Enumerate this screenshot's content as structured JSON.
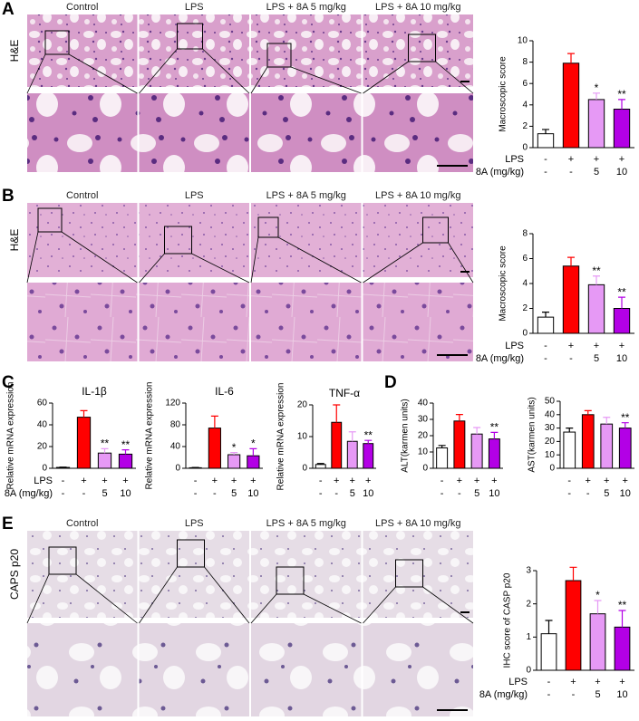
{
  "panel_letters": [
    "A",
    "B",
    "C",
    "D",
    "E"
  ],
  "image_panels": [
    {
      "stain": "H&E",
      "columns": [
        "Control",
        "LPS",
        "LPS + 8A 5 mg/kg",
        "LPS + 8A 10 mg/kg"
      ]
    },
    {
      "stain": "H&E",
      "columns": [
        "Control",
        "LPS",
        "LPS + 8A 5 mg/kg",
        "LPS + 8A 10 mg/kg"
      ]
    },
    {
      "stain": "CAPS p20",
      "columns": [
        "Control",
        "LPS",
        "LPS + 8A 5 mg/kg",
        "LPS + 8A 10 mg/kg"
      ]
    }
  ],
  "chart_data": [
    {
      "type": "bar",
      "ylabel": "Macroscopic score",
      "values": [
        1.3,
        7.9,
        4.5,
        3.6
      ],
      "errors": [
        0.4,
        0.9,
        0.6,
        0.9
      ],
      "annotations": [
        null,
        null,
        "*",
        "**"
      ],
      "colors": [
        "#ffffff",
        "#ff0000",
        "#e699f5",
        "#b300e6"
      ],
      "ylim": [
        0,
        10
      ],
      "yticks": [
        0,
        2,
        4,
        6,
        8,
        10
      ],
      "rows": [
        {
          "label": "LPS",
          "values": [
            "-",
            "+",
            "+",
            "+"
          ]
        },
        {
          "label": "8A (mg/kg)",
          "values": [
            "-",
            "-",
            "5",
            "10"
          ]
        }
      ]
    },
    {
      "type": "bar",
      "ylabel": "Macroscopic score",
      "values": [
        1.3,
        5.4,
        3.9,
        2.0
      ],
      "errors": [
        0.4,
        0.7,
        0.7,
        0.9
      ],
      "annotations": [
        null,
        null,
        "**",
        "**"
      ],
      "colors": [
        "#ffffff",
        "#ff0000",
        "#e699f5",
        "#b300e6"
      ],
      "ylim": [
        0,
        8
      ],
      "yticks": [
        0,
        2,
        4,
        6,
        8
      ],
      "rows": [
        {
          "label": "LPS",
          "values": [
            "-",
            "+",
            "+",
            "+"
          ]
        },
        {
          "label": "8A (mg/kg)",
          "values": [
            "-",
            "-",
            "5",
            "10"
          ]
        }
      ]
    },
    {
      "type": "bar",
      "title": "IL-1β",
      "ylabel": "Relative mRNA expression",
      "values": [
        0.8,
        47,
        14,
        13
      ],
      "errors": [
        0.3,
        6,
        4,
        4
      ],
      "annotations": [
        null,
        null,
        "**",
        "**"
      ],
      "colors": [
        "#ffffff",
        "#ff0000",
        "#e699f5",
        "#b300e6"
      ],
      "ylim": [
        0,
        60
      ],
      "yticks": [
        0,
        20,
        40,
        60
      ],
      "rows": [
        {
          "label": "LPS",
          "values": [
            "-",
            "+",
            "+",
            "+"
          ]
        },
        {
          "label": "8A (mg/kg)",
          "values": [
            "-",
            "-",
            "5",
            "10"
          ]
        }
      ]
    },
    {
      "type": "bar",
      "title": "IL-6",
      "ylabel": "Relative mRNA expression",
      "values": [
        1,
        74,
        25,
        23
      ],
      "errors": [
        0.5,
        22,
        4,
        13
      ],
      "annotations": [
        null,
        null,
        "*",
        "*"
      ],
      "colors": [
        "#ffffff",
        "#ff0000",
        "#e699f5",
        "#b300e6"
      ],
      "ylim": [
        0,
        120
      ],
      "yticks": [
        0,
        40,
        80,
        120
      ],
      "rows": [
        {
          "values": [
            "-",
            "+",
            "+",
            "+"
          ]
        },
        {
          "values": [
            "-",
            "-",
            "5",
            "10"
          ]
        }
      ]
    },
    {
      "type": "bar",
      "title": "TNF-α",
      "ylabel": "Relative mRNA expression",
      "values": [
        1.2,
        14.5,
        8.5,
        7.8
      ],
      "errors": [
        0.3,
        5.5,
        3,
        1
      ],
      "annotations": [
        null,
        null,
        null,
        "**"
      ],
      "colors": [
        "#ffffff",
        "#ff0000",
        "#e699f5",
        "#b300e6"
      ],
      "ylim": [
        0,
        20
      ],
      "yticks": [
        0,
        10,
        20
      ],
      "rows": [
        {
          "values": [
            "-",
            "+",
            "+",
            "+"
          ]
        },
        {
          "values": [
            "-",
            "-",
            "5",
            "10"
          ]
        }
      ]
    },
    {
      "type": "bar",
      "ylabel": "ALT(karmen units)",
      "values": [
        12.5,
        29,
        21,
        18
      ],
      "errors": [
        1.5,
        4,
        4,
        4
      ],
      "annotations": [
        null,
        null,
        null,
        "**"
      ],
      "colors": [
        "#ffffff",
        "#ff0000",
        "#e699f5",
        "#b300e6"
      ],
      "ylim": [
        0,
        40
      ],
      "yticks": [
        0,
        10,
        20,
        30,
        40
      ],
      "rows": [
        {
          "values": [
            "-",
            "+",
            "+",
            "+"
          ]
        },
        {
          "values": [
            "-",
            "-",
            "5",
            "10"
          ]
        }
      ]
    },
    {
      "type": "bar",
      "ylabel": "AST(karmen units)",
      "values": [
        27,
        40,
        33,
        30
      ],
      "errors": [
        3,
        3,
        5,
        4
      ],
      "annotations": [
        null,
        null,
        null,
        "**"
      ],
      "colors": [
        "#ffffff",
        "#ff0000",
        "#e699f5",
        "#b300e6"
      ],
      "ylim": [
        0,
        50
      ],
      "yticks": [
        0,
        10,
        20,
        30,
        40,
        50
      ],
      "rows": [
        {
          "values": [
            "-",
            "+",
            "+",
            "+"
          ]
        },
        {
          "values": [
            "-",
            "-",
            "5",
            "10"
          ]
        }
      ]
    },
    {
      "type": "bar",
      "ylabel": "IHC score of CASP p20",
      "values": [
        1.1,
        2.7,
        1.7,
        1.3
      ],
      "errors": [
        0.4,
        0.4,
        0.4,
        0.5
      ],
      "annotations": [
        null,
        null,
        "*",
        "**"
      ],
      "colors": [
        "#ffffff",
        "#ff0000",
        "#e699f5",
        "#b300e6"
      ],
      "ylim": [
        0,
        3
      ],
      "yticks": [
        0,
        1,
        2,
        3
      ],
      "rows": [
        {
          "label": "LPS",
          "values": [
            "-",
            "+",
            "+",
            "+"
          ]
        },
        {
          "label": "8A (mg/kg)",
          "values": [
            "-",
            "-",
            "5",
            "10"
          ]
        }
      ]
    }
  ]
}
